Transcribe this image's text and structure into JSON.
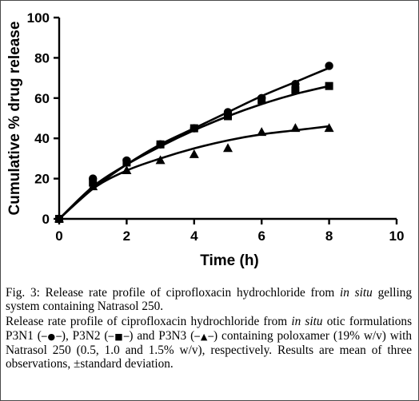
{
  "chart_data": {
    "type": "line",
    "xlabel": "Time (h)",
    "ylabel": "Cumulative % drug release",
    "xlim": [
      0,
      10
    ],
    "ylim": [
      0,
      100
    ],
    "xticks": [
      "0",
      "2",
      "4",
      "6",
      "8",
      "10"
    ],
    "yticks": [
      "0",
      "20",
      "40",
      "60",
      "80",
      "100"
    ],
    "grid": false,
    "legend": "none",
    "series": [
      {
        "name": "P3N1",
        "marker": "circle",
        "x": [
          0,
          1,
          2,
          3,
          4,
          5,
          6,
          7,
          8
        ],
        "y": [
          0,
          20,
          29,
          37,
          45,
          53,
          60,
          67,
          76
        ],
        "fit": [
          0,
          15,
          27,
          37,
          45,
          53,
          61,
          68,
          75
        ]
      },
      {
        "name": "P3N2",
        "marker": "square",
        "x": [
          0,
          1,
          2,
          3,
          4,
          5,
          6,
          7,
          8
        ],
        "y": [
          0,
          18,
          28,
          37,
          45,
          51,
          59,
          64,
          66
        ],
        "fit": [
          0,
          16,
          27,
          36,
          44,
          51,
          57,
          62,
          66
        ]
      },
      {
        "name": "P3N3",
        "marker": "triangle",
        "x": [
          0,
          1,
          2,
          3,
          4,
          5,
          6,
          7,
          8
        ],
        "y": [
          0,
          16,
          24,
          29,
          32,
          35,
          43,
          45,
          45
        ],
        "fit": [
          0,
          15,
          24,
          30,
          35,
          39,
          42,
          44,
          46
        ]
      }
    ]
  },
  "caption": {
    "fig_label": "Fig. 3:",
    "title_a": "Release rate profile of ciprofloxacin hydrochloride from",
    "title_ital": "in situ",
    "title_b": "gelling system containing Natrasol 250.",
    "body_a": "Release rate profile of ciprofloxacin hydrochloride from",
    "body_ital": "in situ",
    "body_b": "otic formulations P3N1 (",
    "sym1": "─●─",
    "body_c": "), P3N2 (",
    "sym2": "─■─",
    "body_d": ") and P3N3 (",
    "sym3": "─▲─",
    "body_e": ") containing poloxamer (19% w/v) with Natrasol 250 (0.5, 1.0 and 1.5% w/v), respectively. Results are mean of three observations, ±standard deviation."
  }
}
